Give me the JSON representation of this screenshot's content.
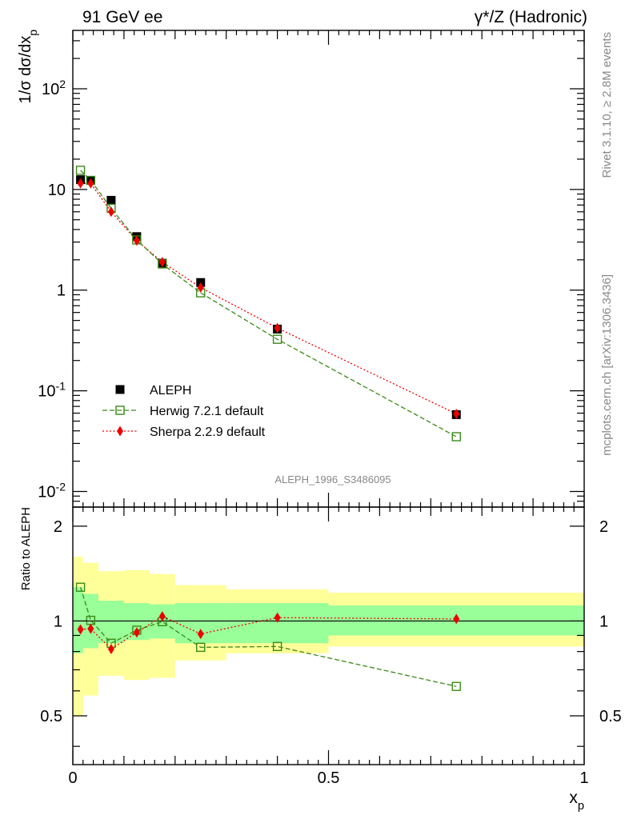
{
  "header": {
    "left_title": "91 GeV ee",
    "right_title": "γ*/Z (Hadronic)"
  },
  "side_text": {
    "rivet": "Rivet 3.1.10, ≥ 2.8M events",
    "mcplots": "mcplots.cern.ch [arXiv:1306.3436]"
  },
  "watermark": "ALEPH_1996_S3486095",
  "chart_data": [
    {
      "type": "scatter",
      "panel": "main",
      "ylabel": "1/σ dσ/dx_p",
      "yscale": "log",
      "xlim": [
        0,
        1
      ],
      "ylim": [
        0.007,
        380
      ],
      "yticks": [
        {
          "value": 0.01,
          "label": "10^-2"
        },
        {
          "value": 0.1,
          "label": "10^-1"
        },
        {
          "value": 1,
          "label": "1"
        },
        {
          "value": 10,
          "label": "10"
        },
        {
          "value": 100,
          "label": "10^2"
        }
      ],
      "legend_position": "middle-left",
      "series": [
        {
          "name": "ALEPH",
          "style": "data",
          "color": "#000000",
          "x": [
            0.015,
            0.035,
            0.075,
            0.125,
            0.175,
            0.25,
            0.4,
            0.75
          ],
          "y": [
            12.5,
            12.3,
            7.8,
            3.4,
            1.85,
            1.19,
            0.41,
            0.058
          ]
        },
        {
          "name": "Herwig 7.2.1 default",
          "style": "herwig",
          "color": "#3a8a18",
          "x": [
            0.015,
            0.035,
            0.075,
            0.125,
            0.175,
            0.25,
            0.4,
            0.75
          ],
          "y": [
            15.5,
            12.3,
            6.5,
            3.15,
            1.82,
            0.94,
            0.325,
            0.035
          ]
        },
        {
          "name": "Sherpa 2.2.9 default",
          "style": "sherpa",
          "color": "#ee0000",
          "x": [
            0.015,
            0.035,
            0.075,
            0.125,
            0.175,
            0.25,
            0.4,
            0.75
          ],
          "y": [
            11.5,
            11.5,
            6.0,
            3.1,
            1.9,
            1.06,
            0.42,
            0.059
          ]
        }
      ]
    },
    {
      "type": "line",
      "panel": "ratio",
      "ylabel": "Ratio to ALEPH",
      "xlabel": "x_p",
      "xlim": [
        0,
        1
      ],
      "ylim": [
        0.35,
        2.3
      ],
      "yscale": "log",
      "yticks": [
        {
          "value": 0.5,
          "label": "0.5"
        },
        {
          "value": 1,
          "label": "1"
        },
        {
          "value": 2,
          "label": "2"
        }
      ],
      "xticks": [
        {
          "value": 0,
          "label": "0"
        },
        {
          "value": 0.5,
          "label": "0.5"
        },
        {
          "value": 1,
          "label": "1"
        }
      ],
      "uncertainty_bands": {
        "bins": [
          [
            0,
            0.02
          ],
          [
            0.02,
            0.05
          ],
          [
            0.05,
            0.1
          ],
          [
            0.1,
            0.15
          ],
          [
            0.15,
            0.2
          ],
          [
            0.2,
            0.3
          ],
          [
            0.3,
            0.5
          ],
          [
            0.5,
            1.0
          ]
        ],
        "inner_lo": [
          0.79,
          0.82,
          0.85,
          0.87,
          0.88,
          0.85,
          0.85,
          0.9
        ],
        "inner_hi": [
          1.28,
          1.22,
          1.16,
          1.14,
          1.13,
          1.14,
          1.14,
          1.12
        ],
        "outer_lo": [
          0.5,
          0.58,
          0.67,
          0.65,
          0.66,
          0.75,
          0.79,
          0.83
        ],
        "outer_hi": [
          1.6,
          1.53,
          1.44,
          1.45,
          1.41,
          1.3,
          1.26,
          1.23
        ],
        "inner_color": "#99ff99",
        "outer_color": "#ffff99"
      },
      "series": [
        {
          "name": "Herwig 7.2.1 default",
          "style": "herwig",
          "color": "#3a8a18",
          "x": [
            0.015,
            0.035,
            0.075,
            0.125,
            0.175,
            0.25,
            0.4,
            0.75
          ],
          "y": [
            1.28,
            1.005,
            0.85,
            0.935,
            0.995,
            0.825,
            0.83,
            0.62
          ]
        },
        {
          "name": "Sherpa 2.2.9 default",
          "style": "sherpa",
          "color": "#ee0000",
          "x": [
            0.015,
            0.035,
            0.075,
            0.125,
            0.175,
            0.25,
            0.4,
            0.75
          ],
          "y": [
            0.94,
            0.945,
            0.815,
            0.92,
            1.035,
            0.91,
            1.025,
            1.015
          ]
        }
      ]
    }
  ]
}
